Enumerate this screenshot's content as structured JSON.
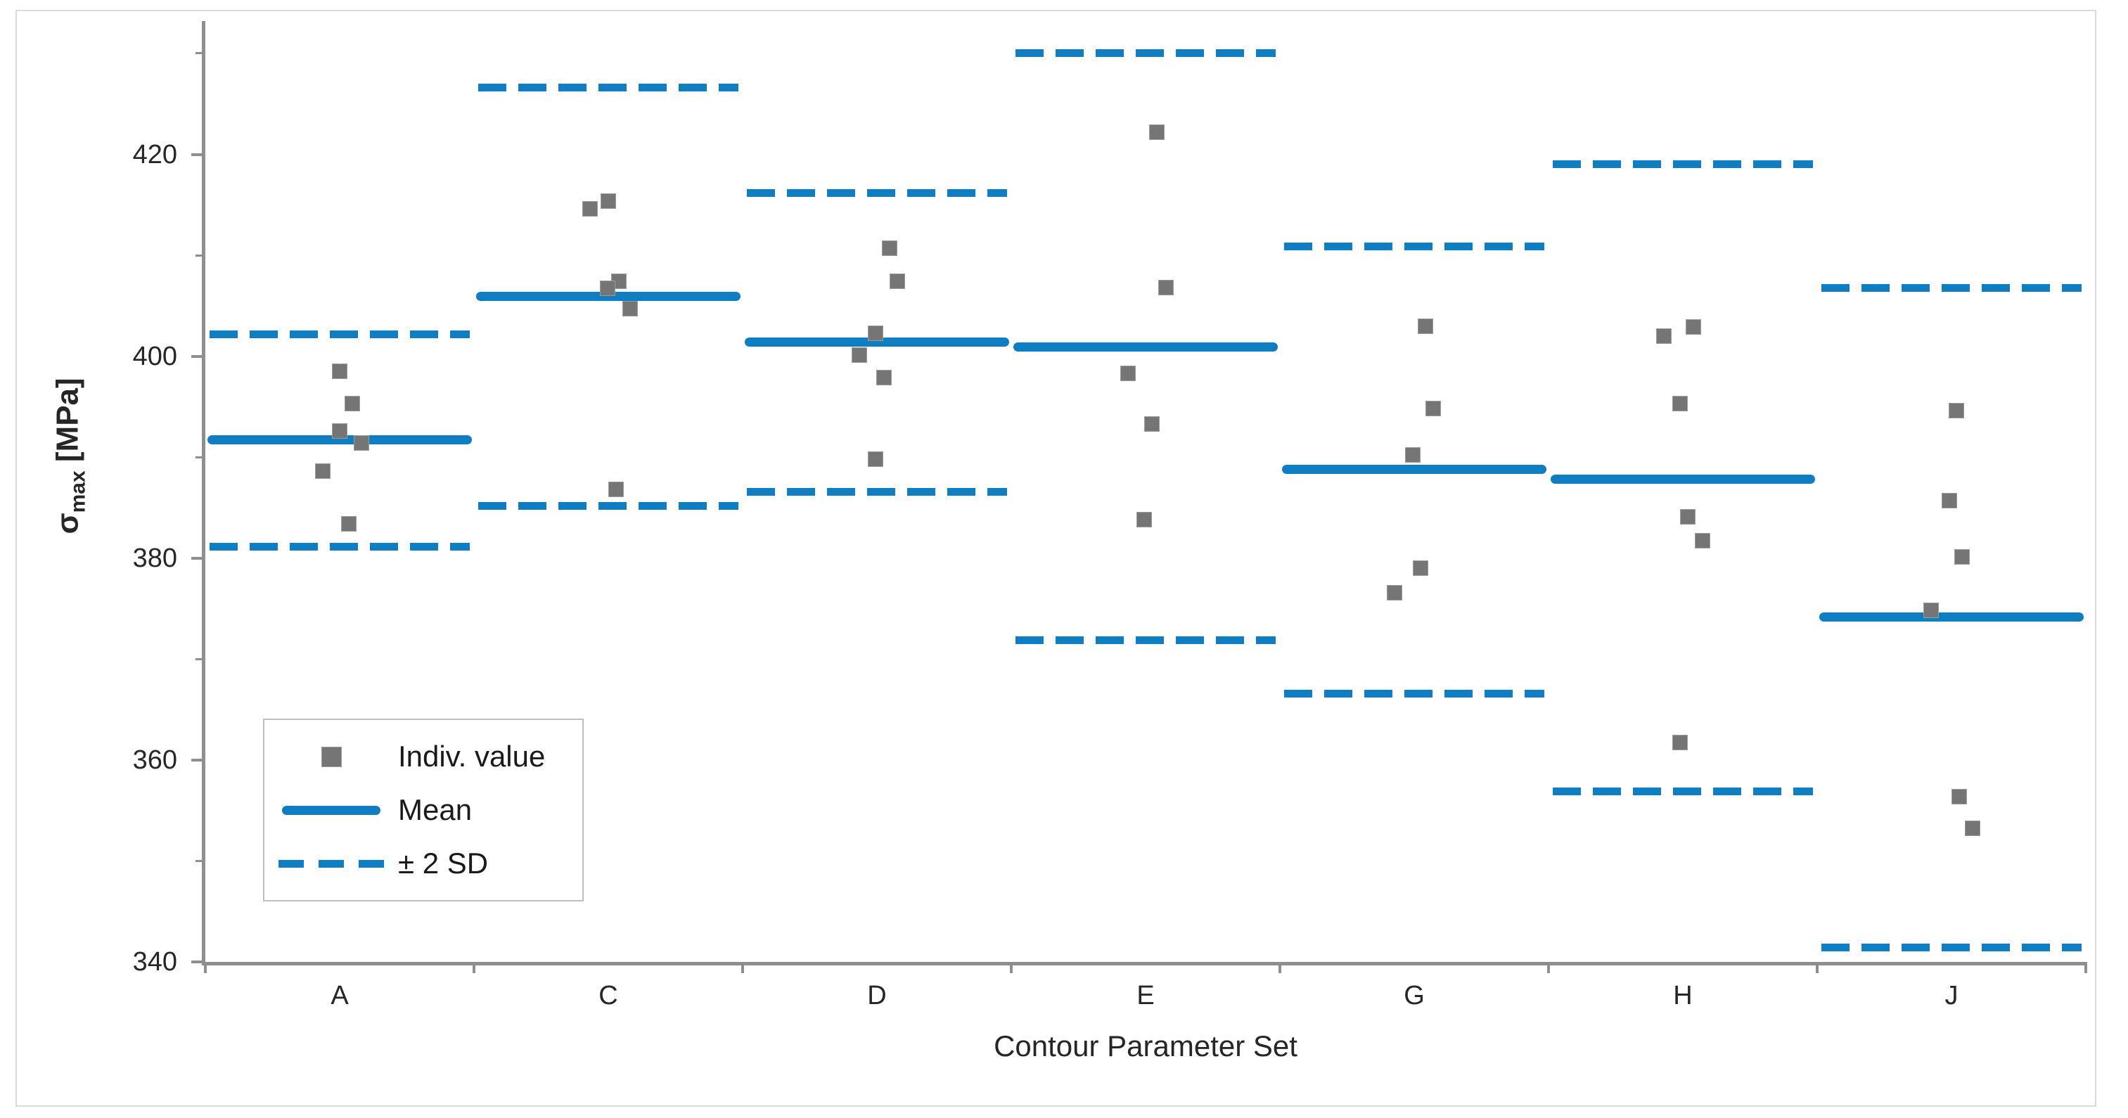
{
  "chart_data": {
    "type": "scatter",
    "title": "",
    "xlabel": "Contour Parameter Set",
    "ylabel_sigma": "σ",
    "ylabel_sub": "max",
    "ylabel_unit": " [MPa]",
    "ylim": [
      340,
      433.2
    ],
    "grid": false,
    "legend_position": "lower-left-inside",
    "yticks_major": [
      340,
      360,
      380,
      400,
      420
    ],
    "yticks_minor": [
      350,
      370,
      390,
      410,
      430
    ],
    "legend": [
      {
        "label": "Indiv. value",
        "sample": "gray-square-marker"
      },
      {
        "label": "Mean",
        "sample": "solid-blue-line"
      },
      {
        "label": "± 2 SD",
        "sample": "dashed-blue-line"
      }
    ],
    "categories": [
      "A",
      "C",
      "D",
      "E",
      "G",
      "H",
      "J"
    ],
    "groups": [
      {
        "label": "A",
        "mean": 391.7,
        "sd2_upper": 402.2,
        "sd2_lower": 381.1,
        "points": [
          {
            "dx": 0,
            "v": 398.5
          },
          {
            "dx": 18,
            "v": 395.3
          },
          {
            "dx": 0,
            "v": 392.6
          },
          {
            "dx": 31,
            "v": 391.4
          },
          {
            "dx": -24,
            "v": 388.6
          },
          {
            "dx": 13,
            "v": 383.4
          }
        ]
      },
      {
        "label": "C",
        "mean": 405.9,
        "sd2_upper": 426.6,
        "sd2_lower": 385.2,
        "points": [
          {
            "dx": 0,
            "v": 415.4
          },
          {
            "dx": -26,
            "v": 414.6
          },
          {
            "dx": 15,
            "v": 407.4
          },
          {
            "dx": -1,
            "v": 406.7
          },
          {
            "dx": 31,
            "v": 404.7
          },
          {
            "dx": 11,
            "v": 386.8
          }
        ]
      },
      {
        "label": "D",
        "mean": 401.4,
        "sd2_upper": 416.2,
        "sd2_lower": 386.6,
        "points": [
          {
            "dx": 18,
            "v": 410.7
          },
          {
            "dx": 29,
            "v": 407.4
          },
          {
            "dx": -2,
            "v": 402.3
          },
          {
            "dx": -25,
            "v": 400.1
          },
          {
            "dx": 10,
            "v": 397.9
          },
          {
            "dx": -2,
            "v": 389.8
          }
        ]
      },
      {
        "label": "E",
        "mean": 400.9,
        "sd2_upper": 430.0,
        "sd2_lower": 371.9,
        "points": [
          {
            "dx": 16,
            "v": 422.2
          },
          {
            "dx": 29,
            "v": 406.8
          },
          {
            "dx": -25,
            "v": 398.3
          },
          {
            "dx": 9,
            "v": 393.3
          },
          {
            "dx": -2,
            "v": 383.8
          }
        ]
      },
      {
        "label": "G",
        "mean": 388.8,
        "sd2_upper": 410.9,
        "sd2_lower": 366.6,
        "points": [
          {
            "dx": 16,
            "v": 403.0
          },
          {
            "dx": 27,
            "v": 394.8
          },
          {
            "dx": -2,
            "v": 390.2
          },
          {
            "dx": 9,
            "v": 379.0
          },
          {
            "dx": -28,
            "v": 376.6
          }
        ]
      },
      {
        "label": "H",
        "mean": 387.8,
        "sd2_upper": 419.0,
        "sd2_lower": 356.9,
        "points": [
          {
            "dx": 15,
            "v": 402.9
          },
          {
            "dx": -27,
            "v": 402.0
          },
          {
            "dx": -4,
            "v": 395.3
          },
          {
            "dx": 7,
            "v": 384.1
          },
          {
            "dx": 28,
            "v": 381.7
          },
          {
            "dx": -4,
            "v": 361.7
          }
        ]
      },
      {
        "label": "J",
        "mean": 374.2,
        "sd2_upper": 406.8,
        "sd2_lower": 341.4,
        "points": [
          {
            "dx": 7,
            "v": 394.6
          },
          {
            "dx": -3,
            "v": 385.7
          },
          {
            "dx": 15,
            "v": 380.1
          },
          {
            "dx": -29,
            "v": 374.8
          },
          {
            "dx": 11,
            "v": 356.4
          },
          {
            "dx": 30,
            "v": 353.2
          }
        ]
      }
    ]
  },
  "colors": {
    "series_blue": "#0e7dc2",
    "marker_gray": "#757575",
    "marker_border": "#9b9b9b",
    "axis_gray": "#8e8e8e",
    "text_dark": "#262626",
    "legend_border": "#bfbfbf",
    "frame_border": "#d9d9d9"
  }
}
